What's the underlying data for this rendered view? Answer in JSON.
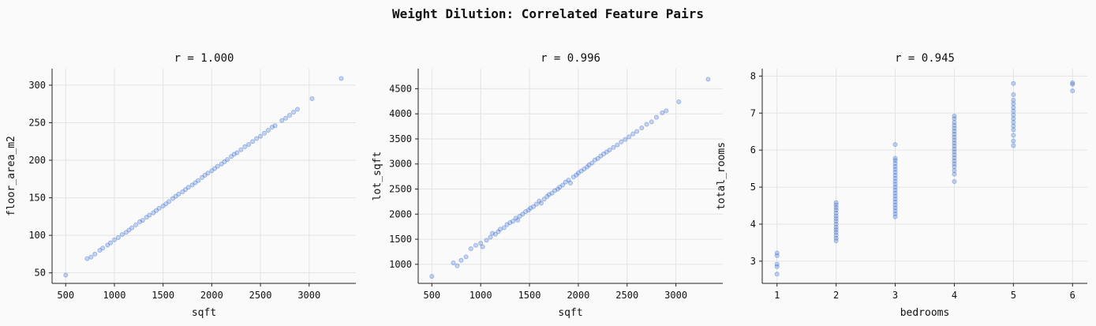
{
  "title": "Weight Dilution: Correlated Feature Pairs",
  "colors": {
    "point": "#3a6fcf",
    "background": "#fafafa",
    "grid": "#e3e3e3"
  },
  "chart_data": [
    {
      "type": "scatter",
      "title": "r = 1.000",
      "xlabel": "sqft",
      "ylabel": "floor_area_m2",
      "xlim": [
        360,
        3480
      ],
      "ylim": [
        36,
        322
      ],
      "xticks": [
        500,
        1000,
        1500,
        2000,
        2500,
        3000
      ],
      "yticks": [
        50,
        100,
        150,
        200,
        250,
        300
      ],
      "grid": true,
      "points": [
        [
          500,
          47
        ],
        [
          720,
          69
        ],
        [
          760,
          71
        ],
        [
          800,
          75
        ],
        [
          850,
          80
        ],
        [
          880,
          83
        ],
        [
          930,
          87
        ],
        [
          960,
          90
        ],
        [
          1000,
          94
        ],
        [
          1040,
          97
        ],
        [
          1080,
          101
        ],
        [
          1120,
          104
        ],
        [
          1150,
          107
        ],
        [
          1180,
          110
        ],
        [
          1220,
          114
        ],
        [
          1260,
          118
        ],
        [
          1290,
          120
        ],
        [
          1330,
          124
        ],
        [
          1360,
          127
        ],
        [
          1400,
          130
        ],
        [
          1430,
          133
        ],
        [
          1460,
          136
        ],
        [
          1500,
          139
        ],
        [
          1530,
          142
        ],
        [
          1560,
          145
        ],
        [
          1600,
          149
        ],
        [
          1630,
          152
        ],
        [
          1660,
          155
        ],
        [
          1700,
          158
        ],
        [
          1730,
          161
        ],
        [
          1760,
          164
        ],
        [
          1800,
          167
        ],
        [
          1830,
          170
        ],
        [
          1860,
          173
        ],
        [
          1900,
          177
        ],
        [
          1930,
          180
        ],
        [
          1960,
          183
        ],
        [
          2000,
          186
        ],
        [
          2030,
          189
        ],
        [
          2060,
          192
        ],
        [
          2100,
          195
        ],
        [
          2130,
          198
        ],
        [
          2160,
          201
        ],
        [
          2200,
          205
        ],
        [
          2230,
          208
        ],
        [
          2260,
          210
        ],
        [
          2300,
          214
        ],
        [
          2340,
          218
        ],
        [
          2380,
          221
        ],
        [
          2420,
          225
        ],
        [
          2460,
          229
        ],
        [
          2500,
          232
        ],
        [
          2540,
          236
        ],
        [
          2580,
          240
        ],
        [
          2620,
          244
        ],
        [
          2650,
          246
        ],
        [
          2720,
          253
        ],
        [
          2760,
          256
        ],
        [
          2800,
          260
        ],
        [
          2840,
          264
        ],
        [
          2880,
          268
        ],
        [
          3030,
          282
        ],
        [
          3330,
          309
        ]
      ]
    },
    {
      "type": "scatter",
      "title": "r = 0.996",
      "xlabel": "sqft",
      "ylabel": "lot_sqft",
      "xlim": [
        360,
        3480
      ],
      "ylim": [
        620,
        4900
      ],
      "xticks": [
        500,
        1000,
        1500,
        2000,
        2500,
        3000
      ],
      "yticks": [
        1000,
        1500,
        2000,
        2500,
        3000,
        3500,
        4000,
        4500
      ],
      "grid": true,
      "points": [
        [
          500,
          760
        ],
        [
          720,
          1030
        ],
        [
          760,
          970
        ],
        [
          800,
          1080
        ],
        [
          850,
          1150
        ],
        [
          900,
          1310
        ],
        [
          950,
          1380
        ],
        [
          1000,
          1420
        ],
        [
          1020,
          1350
        ],
        [
          1060,
          1480
        ],
        [
          1100,
          1540
        ],
        [
          1120,
          1620
        ],
        [
          1150,
          1600
        ],
        [
          1180,
          1650
        ],
        [
          1200,
          1700
        ],
        [
          1240,
          1730
        ],
        [
          1270,
          1790
        ],
        [
          1300,
          1830
        ],
        [
          1330,
          1860
        ],
        [
          1360,
          1920
        ],
        [
          1380,
          1880
        ],
        [
          1400,
          1960
        ],
        [
          1430,
          2000
        ],
        [
          1460,
          2050
        ],
        [
          1490,
          2080
        ],
        [
          1510,
          2120
        ],
        [
          1540,
          2150
        ],
        [
          1570,
          2200
        ],
        [
          1600,
          2260
        ],
        [
          1620,
          2220
        ],
        [
          1650,
          2300
        ],
        [
          1680,
          2350
        ],
        [
          1700,
          2390
        ],
        [
          1730,
          2420
        ],
        [
          1760,
          2470
        ],
        [
          1790,
          2500
        ],
        [
          1810,
          2540
        ],
        [
          1840,
          2580
        ],
        [
          1870,
          2640
        ],
        [
          1900,
          2680
        ],
        [
          1920,
          2620
        ],
        [
          1950,
          2740
        ],
        [
          1980,
          2780
        ],
        [
          2000,
          2820
        ],
        [
          2030,
          2860
        ],
        [
          2060,
          2900
        ],
        [
          2090,
          2940
        ],
        [
          2110,
          2980
        ],
        [
          2140,
          3020
        ],
        [
          2170,
          3080
        ],
        [
          2200,
          3110
        ],
        [
          2230,
          3160
        ],
        [
          2260,
          3200
        ],
        [
          2290,
          3240
        ],
        [
          2320,
          3280
        ],
        [
          2360,
          3330
        ],
        [
          2400,
          3380
        ],
        [
          2440,
          3440
        ],
        [
          2480,
          3490
        ],
        [
          2520,
          3540
        ],
        [
          2560,
          3600
        ],
        [
          2600,
          3650
        ],
        [
          2650,
          3720
        ],
        [
          2700,
          3790
        ],
        [
          2750,
          3840
        ],
        [
          2800,
          3930
        ],
        [
          2860,
          4020
        ],
        [
          2900,
          4060
        ],
        [
          3030,
          4240
        ],
        [
          3330,
          4690
        ]
      ]
    },
    {
      "type": "scatter",
      "title": "r = 0.945",
      "xlabel": "bedrooms",
      "ylabel": "total_rooms",
      "xlim": [
        0.75,
        6.25
      ],
      "ylim": [
        2.4,
        8.2
      ],
      "xticks": [
        1,
        2,
        3,
        4,
        5,
        6
      ],
      "yticks": [
        3,
        4,
        5,
        6,
        7,
        8
      ],
      "grid": true,
      "points": [
        [
          1,
          2.65
        ],
        [
          1,
          2.85
        ],
        [
          1,
          2.92
        ],
        [
          1,
          3.15
        ],
        [
          1,
          3.22
        ],
        [
          2,
          3.55
        ],
        [
          2,
          3.62
        ],
        [
          2,
          3.7
        ],
        [
          2,
          3.78
        ],
        [
          2,
          3.85
        ],
        [
          2,
          3.92
        ],
        [
          2,
          4.0
        ],
        [
          2,
          4.08
        ],
        [
          2,
          4.15
        ],
        [
          2,
          4.22
        ],
        [
          2,
          4.3
        ],
        [
          2,
          4.38
        ],
        [
          2,
          4.45
        ],
        [
          2,
          4.52
        ],
        [
          2,
          4.58
        ],
        [
          3,
          4.2
        ],
        [
          3,
          4.28
        ],
        [
          3,
          4.36
        ],
        [
          3,
          4.44
        ],
        [
          3,
          4.52
        ],
        [
          3,
          4.6
        ],
        [
          3,
          4.68
        ],
        [
          3,
          4.76
        ],
        [
          3,
          4.84
        ],
        [
          3,
          4.92
        ],
        [
          3,
          5.0
        ],
        [
          3,
          5.08
        ],
        [
          3,
          5.16
        ],
        [
          3,
          5.24
        ],
        [
          3,
          5.32
        ],
        [
          3,
          5.4
        ],
        [
          3,
          5.48
        ],
        [
          3,
          5.56
        ],
        [
          3,
          5.64
        ],
        [
          3,
          5.72
        ],
        [
          3,
          5.78
        ],
        [
          3,
          6.15
        ],
        [
          4,
          5.15
        ],
        [
          4,
          5.35
        ],
        [
          4,
          5.45
        ],
        [
          4,
          5.55
        ],
        [
          4,
          5.63
        ],
        [
          4,
          5.71
        ],
        [
          4,
          5.79
        ],
        [
          4,
          5.87
        ],
        [
          4,
          5.95
        ],
        [
          4,
          6.03
        ],
        [
          4,
          6.11
        ],
        [
          4,
          6.19
        ],
        [
          4,
          6.27
        ],
        [
          4,
          6.35
        ],
        [
          4,
          6.43
        ],
        [
          4,
          6.51
        ],
        [
          4,
          6.59
        ],
        [
          4,
          6.67
        ],
        [
          4,
          6.75
        ],
        [
          4,
          6.85
        ],
        [
          4,
          6.92
        ],
        [
          5,
          6.12
        ],
        [
          5,
          6.25
        ],
        [
          5,
          6.4
        ],
        [
          5,
          6.55
        ],
        [
          5,
          6.65
        ],
        [
          5,
          6.75
        ],
        [
          5,
          6.85
        ],
        [
          5,
          6.95
        ],
        [
          5,
          7.05
        ],
        [
          5,
          7.15
        ],
        [
          5,
          7.25
        ],
        [
          5,
          7.35
        ],
        [
          5,
          7.5
        ],
        [
          5,
          7.8
        ],
        [
          6,
          7.6
        ],
        [
          6,
          7.78
        ],
        [
          6,
          7.82
        ]
      ]
    }
  ]
}
